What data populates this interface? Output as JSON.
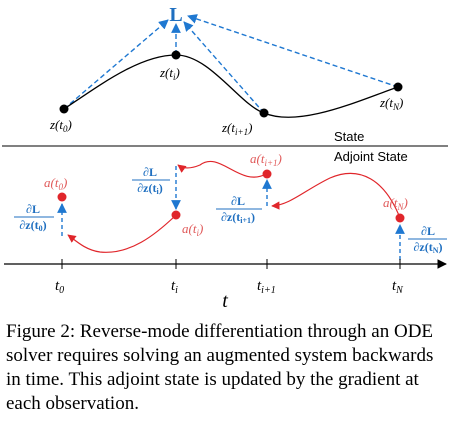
{
  "figure": {
    "top_loss_label": "L",
    "state_label": "State",
    "adjoint_label": "Adjoint State",
    "state_points": [
      {
        "id": "t0",
        "label_main": "z(t",
        "label_sub": "0",
        "label_close": ")"
      },
      {
        "id": "ti",
        "label_main": "z(t",
        "label_sub": "i",
        "label_close": ")"
      },
      {
        "id": "ti1",
        "label_main": "z(t",
        "label_sub": "i+1",
        "label_close": ")"
      },
      {
        "id": "tN",
        "label_main": "z(t",
        "label_sub": "N",
        "label_close": ")"
      }
    ],
    "adjoint_points": [
      {
        "id": "t0",
        "label_main": "a(t",
        "label_sub": "0",
        "label_close": ")"
      },
      {
        "id": "ti",
        "label_main": "a(t",
        "label_sub": "i",
        "label_close": ")"
      },
      {
        "id": "ti1",
        "label_main": "a(t",
        "label_sub": "i+1",
        "label_close": ")"
      },
      {
        "id": "tN",
        "label_main": "a(t",
        "label_sub": "N",
        "label_close": ")"
      }
    ],
    "gradients": [
      {
        "id": "t0",
        "numerator": "∂L",
        "denominator_main": "∂z(t",
        "denominator_sub": "0",
        "denominator_close": ")"
      },
      {
        "id": "ti",
        "numerator": "∂L",
        "denominator_main": "∂z(t",
        "denominator_sub": "i",
        "denominator_close": ")"
      },
      {
        "id": "ti1",
        "numerator": "∂L",
        "denominator_main": "∂z(t",
        "denominator_sub": "i+1",
        "denominator_close": ")"
      },
      {
        "id": "tN",
        "numerator": "∂L",
        "denominator_main": "∂z(t",
        "denominator_sub": "N",
        "denominator_close": ")"
      }
    ],
    "time_ticks": [
      {
        "id": "t0",
        "main": "t",
        "sub": "0"
      },
      {
        "id": "ti",
        "main": "t",
        "sub": "i"
      },
      {
        "id": "ti1",
        "main": "t",
        "sub": "i+1"
      },
      {
        "id": "tN",
        "main": "t",
        "sub": "N"
      }
    ],
    "time_axis_label": "t",
    "colors": {
      "state_curve": "#000000",
      "dashed_arrow": "#1f78d1",
      "adjoint": "#e0262b",
      "adjoint_label": "#e05a5a",
      "gradient_label": "#1f6fc0"
    }
  },
  "caption": "Figure 2: Reverse-mode differentiation through an ODE solver requires solving an augmented system backwards in time. This adjoint state is updated by the gradient at each observation."
}
